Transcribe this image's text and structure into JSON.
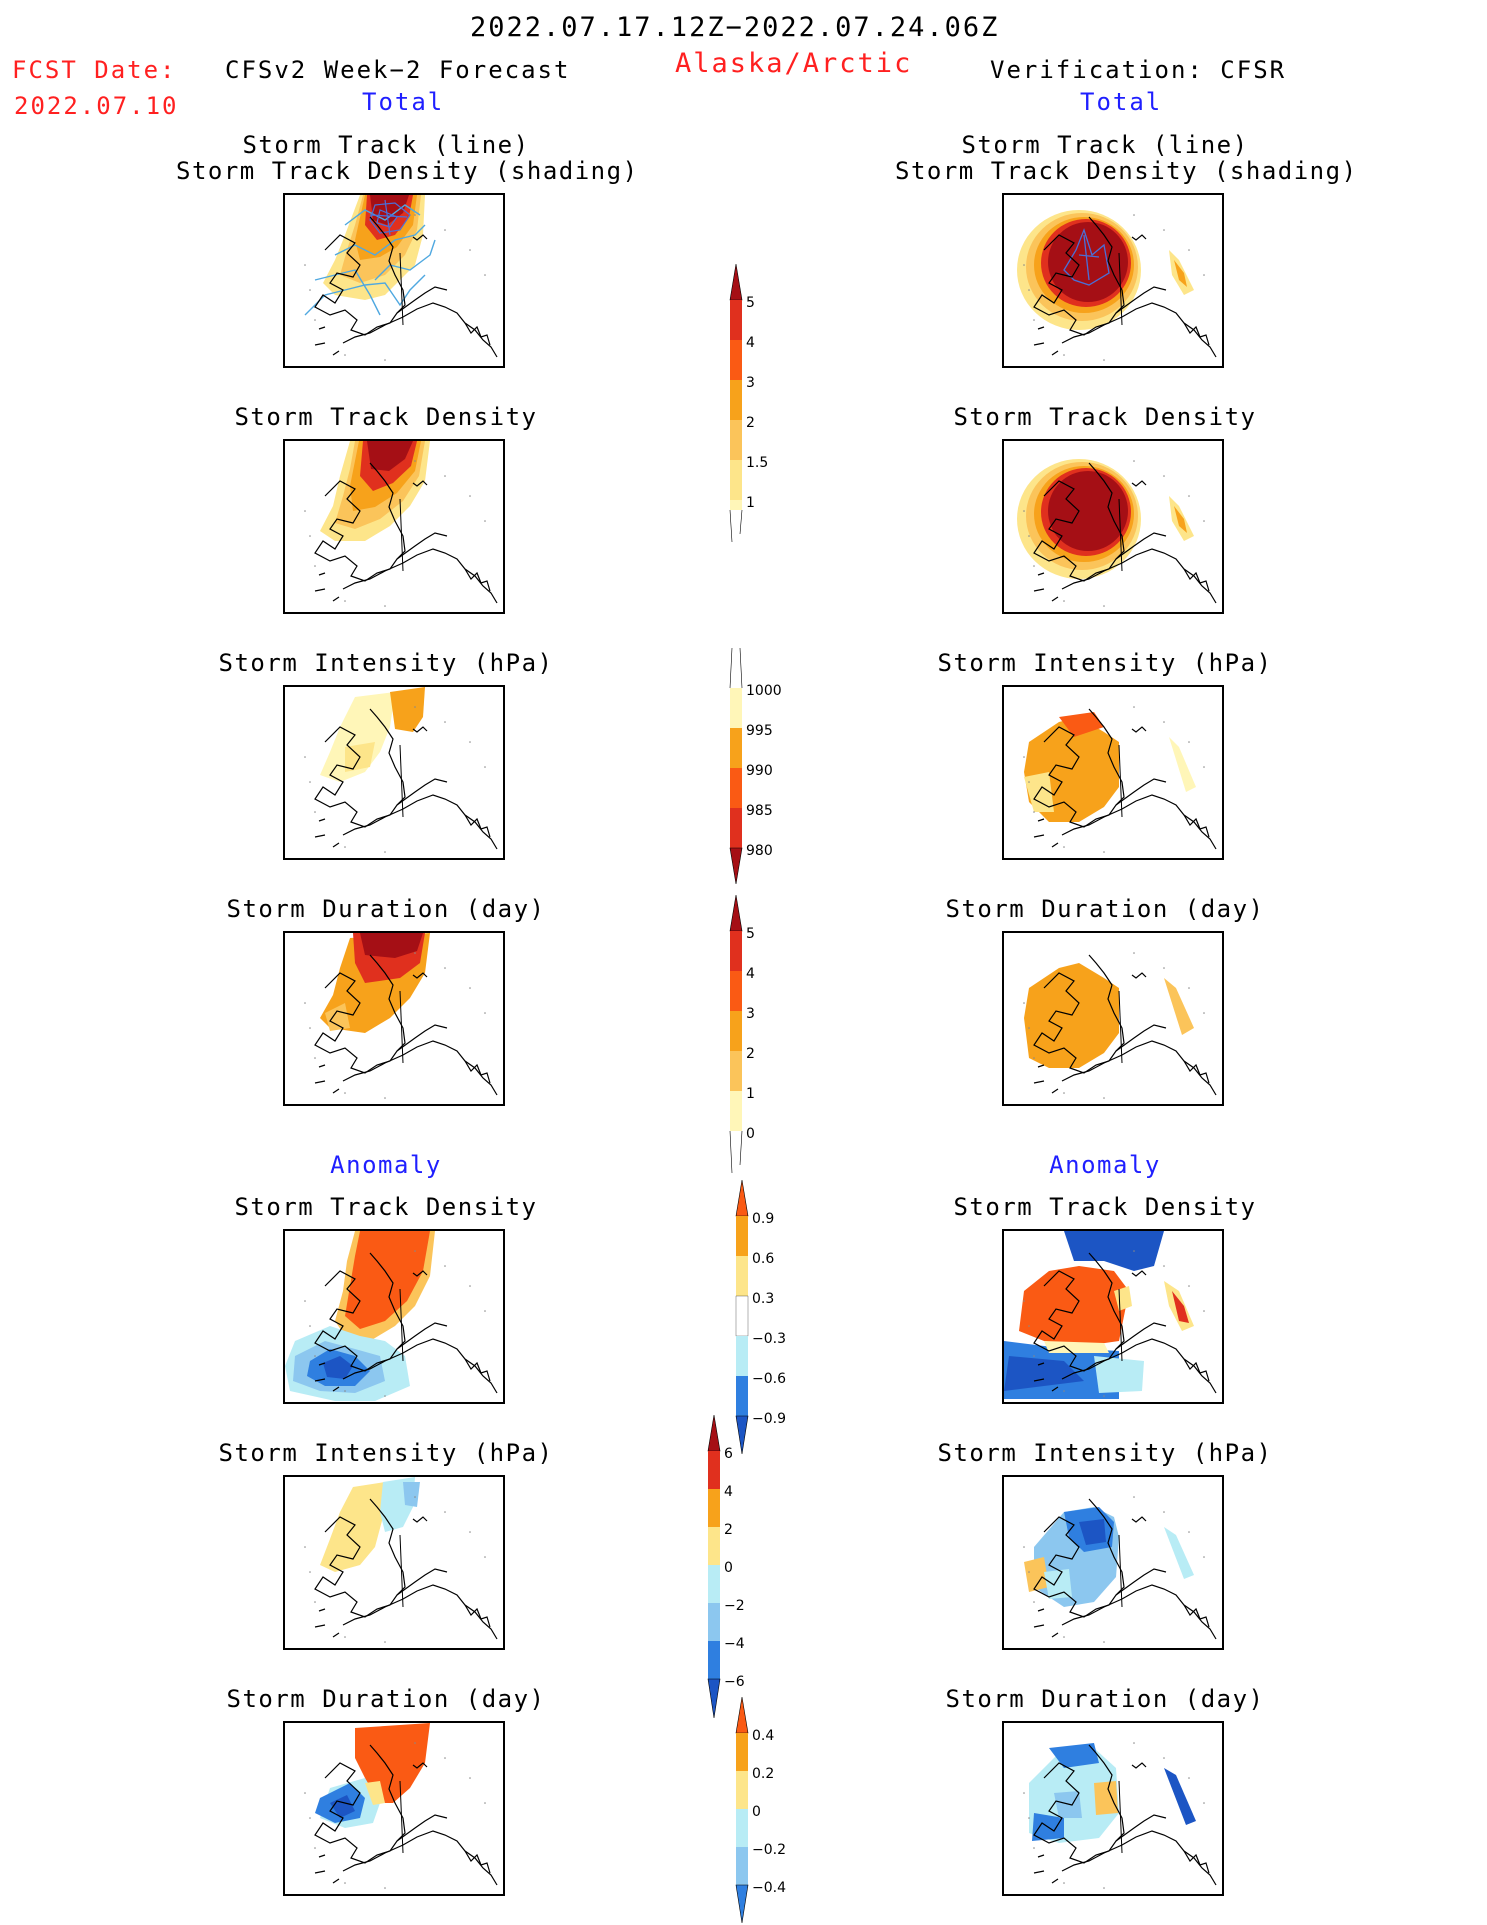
{
  "header": {
    "valid_period": "2022.07.17.12Z−2022.07.24.06Z",
    "region": "Alaska/Arctic",
    "fcst_date_label": "FCST Date:",
    "fcst_date_value": "2022.07.10",
    "left_model": "CFSv2 Week−2 Forecast",
    "right_model": "Verification: CFSR",
    "left_subtitle": "Total",
    "right_subtitle": "Total",
    "left_anomaly": "Anomaly",
    "right_anomaly": "Anomaly"
  },
  "panel_titles": {
    "track_line": "Storm Track (line)",
    "track_shading": "Storm Track Density (shading)",
    "density": "Storm Track Density",
    "intensity": "Storm Intensity (hPa)",
    "duration": "Storm Duration (day)"
  },
  "colorbars": {
    "density_total": [
      "5",
      "4",
      "3",
      "2",
      "1.5",
      "1"
    ],
    "intensity_total": [
      "1000",
      "995",
      "990",
      "985",
      "980"
    ],
    "duration_total": [
      "5",
      "4",
      "3",
      "2",
      "1",
      "0"
    ],
    "density_anom": [
      "0.9",
      "0.6",
      "0.3",
      "−0.3",
      "−0.6",
      "−0.9"
    ],
    "intensity_anom": [
      "6",
      "4",
      "2",
      "0",
      "−2",
      "−4",
      "−6"
    ],
    "duration_anom": [
      "0.4",
      "0.2",
      "0",
      "−0.2",
      "−0.4"
    ]
  },
  "colors": {
    "darkred": "#a50f15",
    "red": "#e0301e",
    "orangered": "#fa5a14",
    "orange": "#f7a21b",
    "lightorange": "#fbc45a",
    "yellow": "#fde58a",
    "paleyellow": "#fff6b8",
    "paleblue": "#b8ecf5",
    "lightblue": "#8cc7ef",
    "blue": "#2f7fe0",
    "darkblue": "#1c55c4",
    "trackline": "#4fa8e0"
  }
}
